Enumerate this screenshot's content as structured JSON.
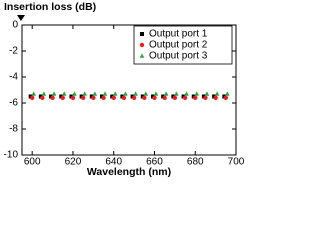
{
  "chart_data": {
    "type": "scatter",
    "ylabel": "Insertion loss (dB)",
    "xlabel": "Wavelength (nm)",
    "x": [
      600,
      605,
      610,
      615,
      620,
      625,
      630,
      635,
      640,
      645,
      650,
      655,
      660,
      665,
      670,
      675,
      680,
      685,
      690,
      695
    ],
    "series": [
      {
        "name": "Output port 1",
        "color": "#000000",
        "marker": "square",
        "values": [
          -5.5,
          -5.5,
          -5.5,
          -5.5,
          -5.5,
          -5.5,
          -5.5,
          -5.5,
          -5.5,
          -5.5,
          -5.5,
          -5.5,
          -5.5,
          -5.5,
          -5.5,
          -5.5,
          -5.5,
          -5.5,
          -5.5,
          -5.5
        ]
      },
      {
        "name": "Output port 2",
        "color": "#e8201c",
        "marker": "circle",
        "values": [
          -5.6,
          -5.6,
          -5.6,
          -5.6,
          -5.6,
          -5.6,
          -5.6,
          -5.6,
          -5.6,
          -5.6,
          -5.6,
          -5.6,
          -5.6,
          -5.6,
          -5.6,
          -5.6,
          -5.6,
          -5.6,
          -5.6,
          -5.6
        ]
      },
      {
        "name": "Output port 3",
        "color": "#2e9e3e",
        "marker": "triangle",
        "values": [
          -5.3,
          -5.3,
          -5.3,
          -5.3,
          -5.3,
          -5.3,
          -5.3,
          -5.3,
          -5.3,
          -5.3,
          -5.3,
          -5.3,
          -5.3,
          -5.3,
          -5.3,
          -5.3,
          -5.3,
          -5.3,
          -5.3,
          -5.3
        ]
      }
    ],
    "xlim": [
      595,
      700
    ],
    "xticks": [
      600,
      620,
      640,
      660,
      680,
      700
    ],
    "ylim": [
      -10,
      0
    ],
    "yticks": [
      -10,
      -8,
      -6,
      -4,
      -2,
      0
    ],
    "grid": false,
    "legend": "upper right"
  }
}
